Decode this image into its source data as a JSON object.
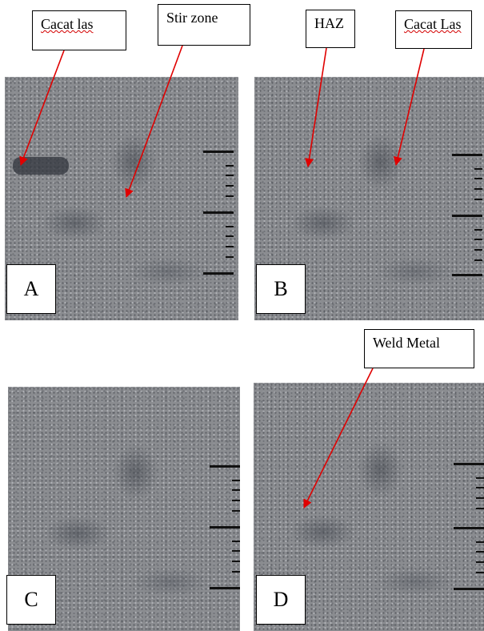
{
  "figure": {
    "panels": [
      {
        "id": "a",
        "letter": "A"
      },
      {
        "id": "b",
        "letter": "B"
      },
      {
        "id": "c",
        "letter": "C"
      },
      {
        "id": "d",
        "letter": "D"
      }
    ],
    "callouts": {
      "cacat_las_a": "Cacat las",
      "stir_zone": "Stir zone",
      "haz": "HAZ",
      "cacat_las_b": "Cacat Las",
      "weld_metal": "Weld Metal"
    },
    "colors": {
      "arrow": "#e00000",
      "spellcheck_underline": "#d40000",
      "micrograph": "#8a8c90"
    }
  }
}
